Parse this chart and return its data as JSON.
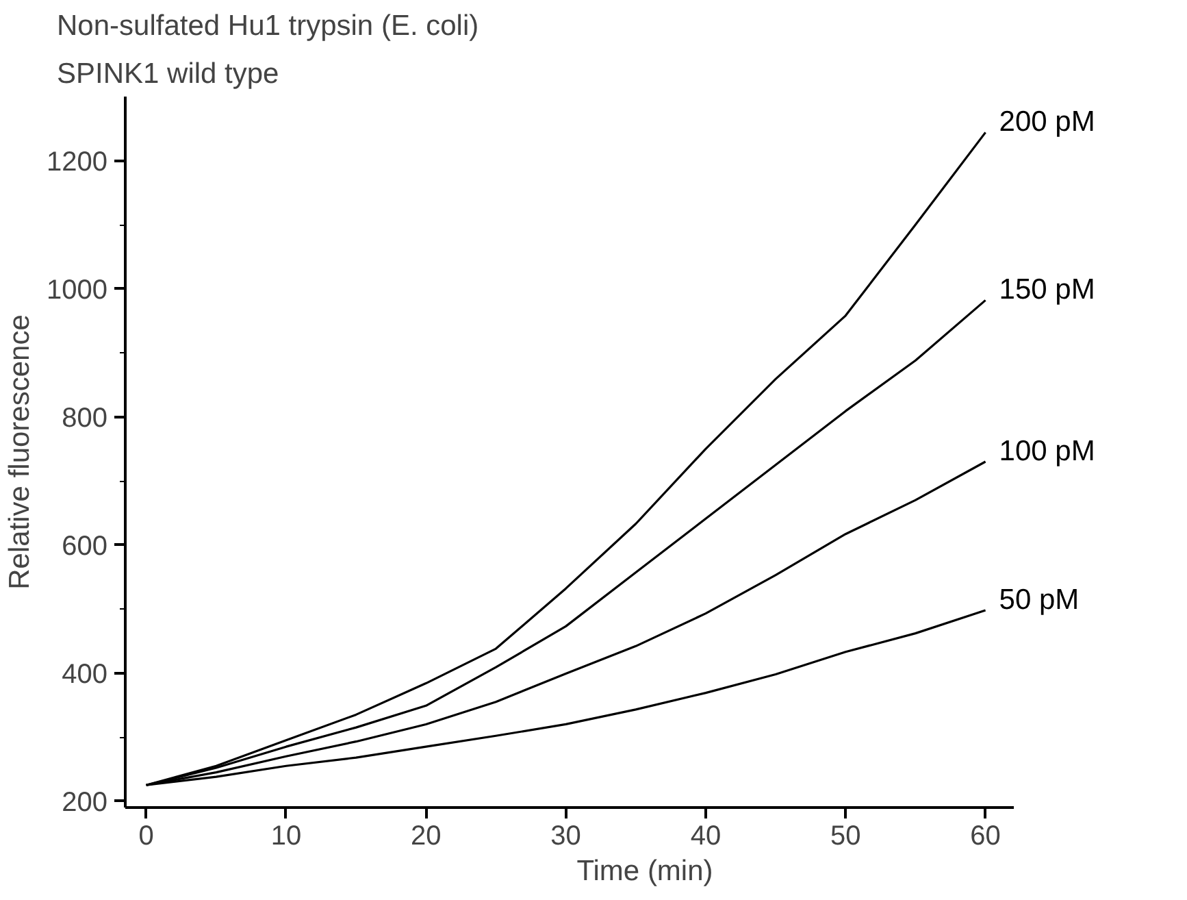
{
  "chart_data": {
    "type": "line",
    "title": "Non-sulfated Hu1 trypsin (E. coli)",
    "subtitle": "SPINK1 wild type",
    "xlabel": "Time (min)",
    "ylabel": "Relative fluorescence",
    "x": [
      0,
      5,
      10,
      15,
      20,
      25,
      30,
      35,
      40,
      45,
      50,
      55,
      60
    ],
    "series": [
      {
        "name": "200 pM",
        "color": "#000000",
        "values": [
          225,
          255,
          295,
          335,
          384,
          438,
          532,
          633,
          750,
          859,
          958,
          1100,
          1244
        ]
      },
      {
        "name": "150 pM",
        "color": "#000000",
        "values": [
          225,
          252,
          285,
          315,
          349,
          409,
          473,
          557,
          641,
          725,
          809,
          888,
          982
        ]
      },
      {
        "name": "100 pM",
        "color": "#000000",
        "values": [
          225,
          245,
          270,
          293,
          320,
          355,
          399,
          442,
          493,
          553,
          617,
          670,
          730
        ]
      },
      {
        "name": "50 pM",
        "color": "#000000",
        "values": [
          225,
          238,
          255,
          268,
          285,
          302,
          320,
          343,
          369,
          398,
          433,
          462,
          498
        ]
      }
    ],
    "xlim": [
      -1.5,
      62
    ],
    "ylim": [
      190,
      1300
    ],
    "xticks": [
      0,
      10,
      20,
      30,
      40,
      50,
      60
    ],
    "yticks": [
      200,
      400,
      600,
      800,
      1000,
      1200
    ],
    "grid": false,
    "legend": false,
    "marker": "none",
    "line_style": "solid"
  }
}
